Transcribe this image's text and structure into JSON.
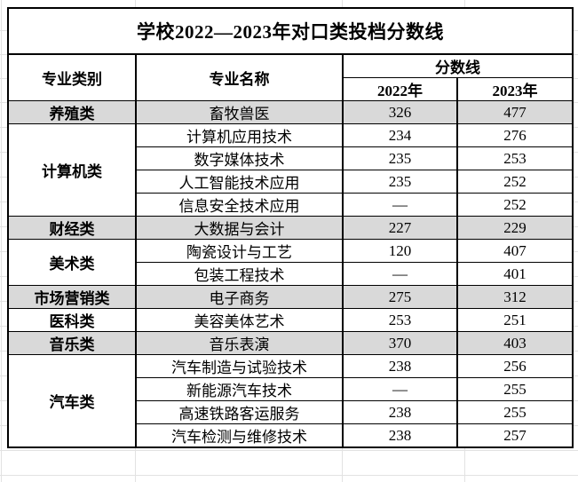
{
  "title": "学校2022—2023年对口类投档分数线",
  "table": {
    "headers": {
      "category": "专业类别",
      "major": "专业名称",
      "score_line": "分数线",
      "year_2022": "2022年",
      "year_2023": "2023年"
    },
    "groups": [
      {
        "category": "养殖类",
        "shaded": true,
        "rows": [
          {
            "major": "畜牧兽医",
            "y2022": "326",
            "y2023": "477"
          }
        ]
      },
      {
        "category": "计算机类",
        "shaded": false,
        "rows": [
          {
            "major": "计算机应用技术",
            "y2022": "234",
            "y2023": "276"
          },
          {
            "major": "数字媒体技术",
            "y2022": "235",
            "y2023": "253"
          },
          {
            "major": "人工智能技术应用",
            "y2022": "235",
            "y2023": "252"
          },
          {
            "major": "信息安全技术应用",
            "y2022": "—",
            "y2023": "252"
          }
        ]
      },
      {
        "category": "财经类",
        "shaded": true,
        "rows": [
          {
            "major": "大数据与会计",
            "y2022": "227",
            "y2023": "229"
          }
        ]
      },
      {
        "category": "美术类",
        "shaded": false,
        "rows": [
          {
            "major": "陶瓷设计与工艺",
            "y2022": "120",
            "y2023": "407"
          },
          {
            "major": "包装工程技术",
            "y2022": "—",
            "y2023": "401"
          }
        ]
      },
      {
        "category": "市场营销类",
        "shaded": true,
        "rows": [
          {
            "major": "电子商务",
            "y2022": "275",
            "y2023": "312"
          }
        ]
      },
      {
        "category": "医科类",
        "shaded": false,
        "rows": [
          {
            "major": "美容美体艺术",
            "y2022": "253",
            "y2023": "251"
          }
        ]
      },
      {
        "category": "音乐类",
        "shaded": true,
        "rows": [
          {
            "major": "音乐表演",
            "y2022": "370",
            "y2023": "403"
          }
        ]
      },
      {
        "category": "汽车类",
        "shaded": false,
        "rows": [
          {
            "major": "汽车制造与试验技术",
            "y2022": "238",
            "y2023": "256"
          },
          {
            "major": "新能源汽车技术",
            "y2022": "—",
            "y2023": "255"
          },
          {
            "major": "高速铁路客运服务",
            "y2022": "238",
            "y2023": "255"
          },
          {
            "major": "汽车检测与维修技术",
            "y2022": "238",
            "y2023": "257"
          }
        ]
      }
    ]
  },
  "chart_data": {
    "type": "table",
    "title": "学校2022—2023年对口类投档分数线",
    "columns": [
      "专业类别",
      "专业名称",
      "2022年",
      "2023年"
    ],
    "rows": [
      [
        "养殖类",
        "畜牧兽医",
        "326",
        "477"
      ],
      [
        "计算机类",
        "计算机应用技术",
        "234",
        "276"
      ],
      [
        "计算机类",
        "数字媒体技术",
        "235",
        "253"
      ],
      [
        "计算机类",
        "人工智能技术应用",
        "235",
        "252"
      ],
      [
        "计算机类",
        "信息安全技术应用",
        "—",
        "252"
      ],
      [
        "财经类",
        "大数据与会计",
        "227",
        "229"
      ],
      [
        "美术类",
        "陶瓷设计与工艺",
        "120",
        "407"
      ],
      [
        "美术类",
        "包装工程技术",
        "—",
        "401"
      ],
      [
        "市场营销类",
        "电子商务",
        "275",
        "312"
      ],
      [
        "医科类",
        "美容美体艺术",
        "253",
        "251"
      ],
      [
        "音乐类",
        "音乐表演",
        "370",
        "403"
      ],
      [
        "汽车类",
        "汽车制造与试验技术",
        "238",
        "256"
      ],
      [
        "汽车类",
        "新能源汽车技术",
        "—",
        "255"
      ],
      [
        "汽车类",
        "高速铁路客运服务",
        "238",
        "255"
      ],
      [
        "汽车类",
        "汽车检测与维修技术",
        "238",
        "257"
      ]
    ]
  },
  "colors": {
    "shaded_row": "#d9d9d9",
    "border": "#000000",
    "gridline": "#e2e2e2",
    "background": "#ffffff",
    "text": "#000000"
  }
}
